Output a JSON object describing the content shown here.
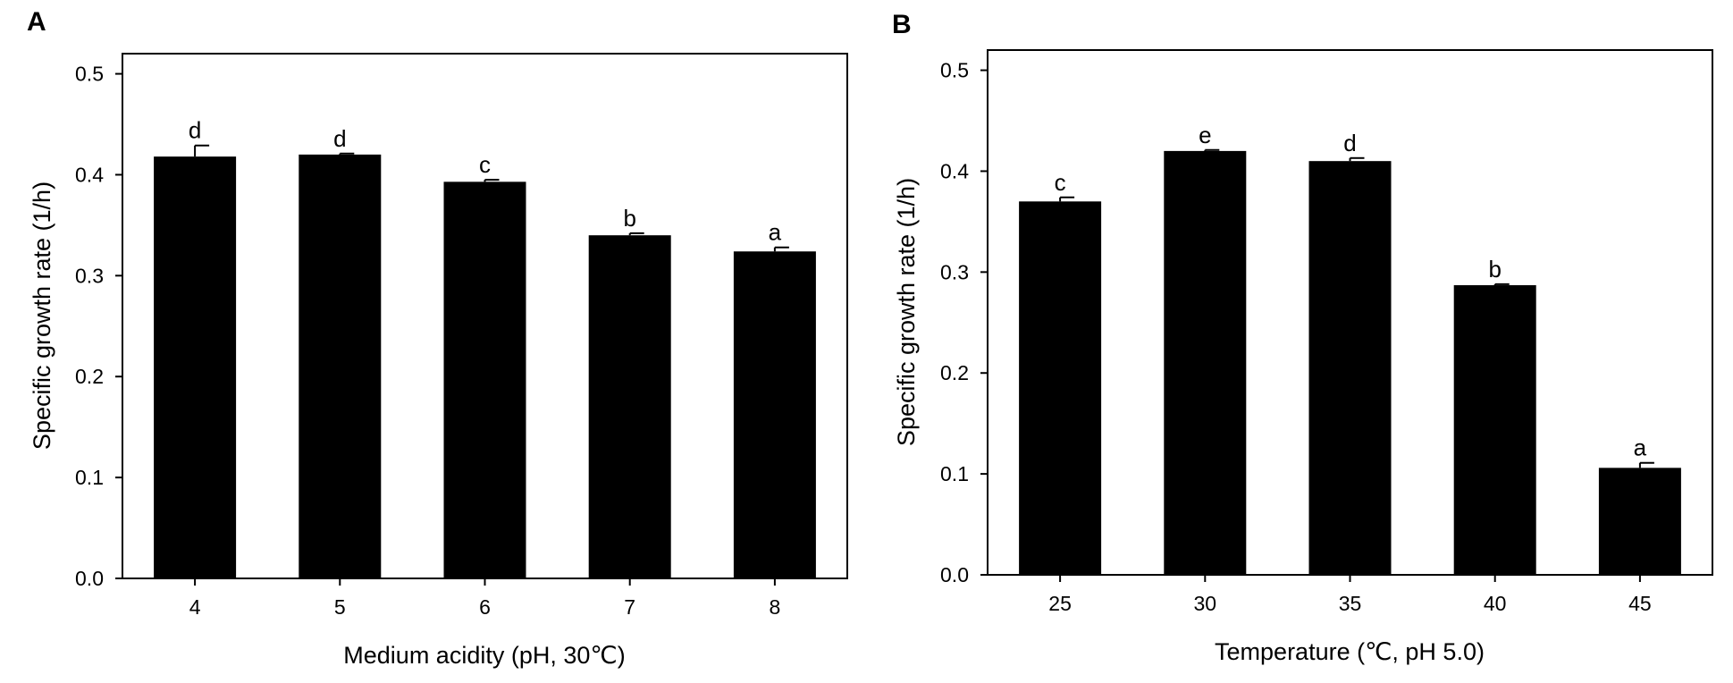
{
  "chart_data": [
    {
      "panel_label": "A",
      "type": "bar",
      "xlabel": "Medium acidity (pH, 30℃)",
      "ylabel": "Specific growth rate (1/h)",
      "ylim": [
        0,
        0.52
      ],
      "yticks": [
        "0.0",
        "0.1",
        "0.2",
        "0.3",
        "0.4",
        "0.5"
      ],
      "categories": [
        "4",
        "5",
        "6",
        "7",
        "8"
      ],
      "values": [
        0.418,
        0.42,
        0.393,
        0.34,
        0.324
      ],
      "errors": [
        0.011,
        0.001,
        0.002,
        0.002,
        0.004
      ],
      "letters": [
        "d",
        "d",
        "c",
        "b",
        "a"
      ],
      "bar_color": "#000000",
      "grid": false
    },
    {
      "panel_label": "B",
      "type": "bar",
      "xlabel": "Temperature (℃, pH 5.0)",
      "ylabel": "Specific growth rate (1/h)",
      "ylim": [
        0,
        0.52
      ],
      "yticks": [
        "0.0",
        "0.1",
        "0.2",
        "0.3",
        "0.4",
        "0.5"
      ],
      "categories": [
        "25",
        "30",
        "35",
        "40",
        "45"
      ],
      "values": [
        0.37,
        0.42,
        0.41,
        0.287,
        0.106
      ],
      "errors": [
        0.004,
        0.001,
        0.003,
        0.001,
        0.005
      ],
      "letters": [
        "c",
        "e",
        "d",
        "b",
        "a"
      ],
      "bar_color": "#000000",
      "grid": false
    }
  ]
}
